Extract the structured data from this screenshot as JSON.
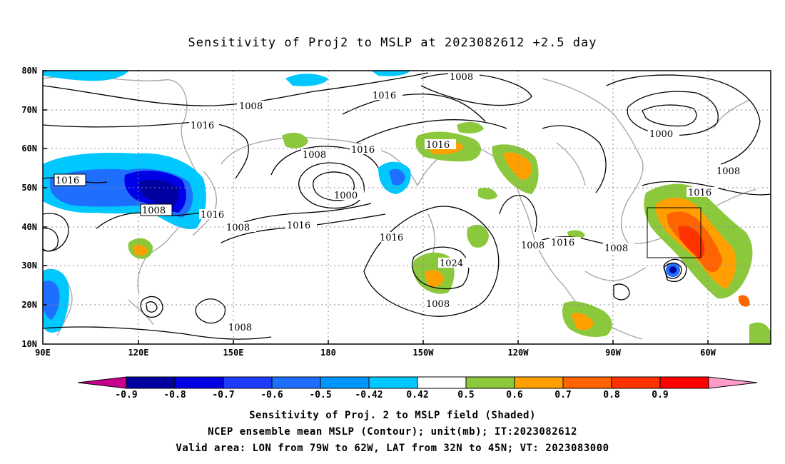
{
  "title": "Sensitivity of Proj2 to MSLP at 2023082612 +2.5 day",
  "lat_labels": [
    "80N",
    "70N",
    "60N",
    "50N",
    "40N",
    "30N",
    "20N",
    "10N"
  ],
  "lon_labels": [
    "90E",
    "120E",
    "150E",
    "180",
    "150W",
    "120W",
    "90W",
    "60W"
  ],
  "contour_labels": [
    "1008",
    "1016",
    "1016",
    "1008",
    "1016",
    "1016",
    "1008",
    "1000",
    "1016",
    "1008",
    "1008",
    "1016",
    "1016",
    "1024",
    "1016",
    "1008",
    "1008",
    "1016",
    "1008",
    "1000",
    "1008",
    "1016",
    "1008"
  ],
  "colorbar": {
    "labels": [
      "-0.9",
      "-0.8",
      "-0.7",
      "-0.6",
      "-0.5",
      "-0.42",
      "0.42",
      "0.5",
      "0.6",
      "0.7",
      "0.8",
      "0.9"
    ],
    "colors": [
      "#c8008c",
      "#0000a0",
      "#0000e6",
      "#1e3cff",
      "#1e6eff",
      "#0096ff",
      "#00c8ff",
      "#ffffff",
      "#8cc83c",
      "#ffa000",
      "#ff6400",
      "#ff3200",
      "#ff0000",
      "#ff9bc8"
    ]
  },
  "captions": [
    "Sensitivity of Proj. 2 to MSLP field (Shaded)",
    "NCEP ensemble mean MSLP (Contour); unit(mb); IT:2023082612",
    "Valid area: LON from 79W to 62W, LAT from 32N to 45N; VT: 2023083000"
  ]
}
